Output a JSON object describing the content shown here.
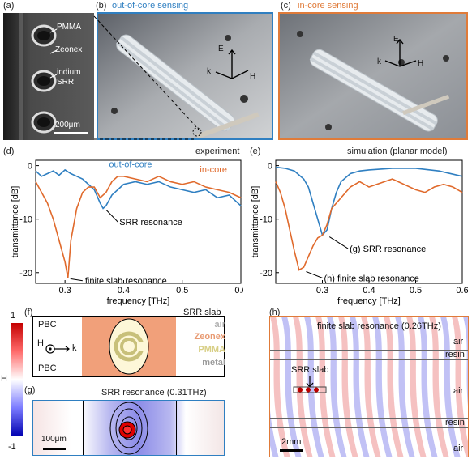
{
  "panels": {
    "a": {
      "label": "(a)",
      "annotations": [
        "PMMA",
        "Zeonex",
        "indium",
        "SRR"
      ],
      "scalebar": "200μm"
    },
    "b": {
      "label": "(b)",
      "title": "out-of-core sensing",
      "color": "#2f7fc1",
      "axes": {
        "e": "E",
        "k": "k",
        "h": "H"
      }
    },
    "c": {
      "label": "(c)",
      "title": "in-core sensing",
      "color": "#e07b39",
      "axes": {
        "e": "E",
        "k": "k",
        "h": "H"
      }
    },
    "d": {
      "label": "(d)",
      "tag": "experiment"
    },
    "e": {
      "label": "(e)",
      "tag": "simulation (planar model)"
    },
    "f": {
      "label": "(f)",
      "pbc_top": "PBC",
      "pbc_bottom": "PBC",
      "h_label": "H",
      "k_label": "k",
      "legend_title": "SRR slab",
      "legend": [
        {
          "name": "air",
          "color": "#b0b0b0"
        },
        {
          "name": "Zeonex",
          "color": "#e89a72"
        },
        {
          "name": "PMMA",
          "color": "#e8e0a0"
        },
        {
          "name": "metal",
          "color": "#9a9a9a"
        }
      ]
    },
    "g": {
      "label": "(g)",
      "title": "SRR resonance (0.31THz)",
      "scalebar": "100μm"
    },
    "h": {
      "label": "(h)",
      "title": "finite slab resonance (0.26THz)",
      "layers": [
        "air",
        "resin",
        "air",
        "resin",
        "air"
      ],
      "slab_label": "SRR slab",
      "scalebar": "2mm"
    },
    "colorbar": {
      "label": "H",
      "max": "1",
      "min": "-1"
    }
  },
  "chart_data": [
    {
      "type": "line",
      "panel": "d",
      "xlabel": "frequency [THz]",
      "ylabel": "transmittance [dB]",
      "xlim": [
        0.25,
        0.6
      ],
      "ylim": [
        -22,
        1
      ],
      "xticks": [
        0.3,
        0.4,
        0.5,
        0.6
      ],
      "yticks": [
        0,
        -10,
        -20
      ],
      "series": [
        {
          "name": "out-of-core",
          "color": "#2f7fc1",
          "x": [
            0.25,
            0.26,
            0.27,
            0.28,
            0.29,
            0.3,
            0.31,
            0.32,
            0.33,
            0.34,
            0.35,
            0.36,
            0.365,
            0.37,
            0.38,
            0.39,
            0.4,
            0.42,
            0.44,
            0.46,
            0.48,
            0.5,
            0.52,
            0.54,
            0.56,
            0.58,
            0.6
          ],
          "y": [
            -1,
            -2,
            -1.5,
            -1,
            -1.8,
            -0.8,
            -1.5,
            -2,
            -2.5,
            -3.5,
            -4.5,
            -7,
            -8,
            -7.5,
            -5.5,
            -4.5,
            -3.5,
            -3,
            -3.5,
            -3,
            -4,
            -4.5,
            -5,
            -4.5,
            -6,
            -5.5,
            -7.5
          ]
        },
        {
          "name": "in-core",
          "color": "#e06a2c",
          "x": [
            0.25,
            0.26,
            0.27,
            0.28,
            0.29,
            0.3,
            0.305,
            0.31,
            0.32,
            0.33,
            0.34,
            0.35,
            0.36,
            0.37,
            0.38,
            0.39,
            0.4,
            0.42,
            0.44,
            0.46,
            0.48,
            0.5,
            0.52,
            0.54,
            0.56,
            0.58,
            0.6
          ],
          "y": [
            -3,
            -5,
            -7,
            -10,
            -14,
            -18,
            -21,
            -14,
            -8,
            -5,
            -4,
            -4,
            -6,
            -5,
            -3,
            -2,
            -2,
            -2.5,
            -3,
            -2,
            -3,
            -3.5,
            -3,
            -4,
            -4.5,
            -5,
            -6
          ]
        }
      ],
      "annotations": [
        {
          "text": "SRR resonance",
          "x": 0.365,
          "y": -8
        },
        {
          "text": "finite slab resonance",
          "x": 0.305,
          "y": -21
        }
      ]
    },
    {
      "type": "line",
      "panel": "e",
      "xlabel": "frequency [THz]",
      "ylabel": "transmittance [dB]",
      "xlim": [
        0.2,
        0.6
      ],
      "ylim": [
        -22,
        1
      ],
      "xticks": [
        0.3,
        0.4,
        0.5,
        0.6
      ],
      "yticks": [
        0,
        -10,
        -20
      ],
      "series": [
        {
          "name": "out-of-core",
          "color": "#2f7fc1",
          "x": [
            0.2,
            0.22,
            0.24,
            0.26,
            0.27,
            0.28,
            0.29,
            0.3,
            0.31,
            0.32,
            0.33,
            0.34,
            0.36,
            0.38,
            0.4,
            0.45,
            0.5,
            0.55,
            0.6
          ],
          "y": [
            -0.3,
            -0.5,
            -1,
            -2.5,
            -4,
            -7,
            -10,
            -13,
            -12,
            -8,
            -5,
            -3,
            -1.5,
            -1,
            -0.8,
            -0.5,
            -0.5,
            -1,
            -2
          ]
        },
        {
          "name": "in-core",
          "color": "#e06a2c",
          "x": [
            0.2,
            0.21,
            0.22,
            0.23,
            0.24,
            0.25,
            0.26,
            0.27,
            0.28,
            0.29,
            0.3,
            0.31,
            0.32,
            0.33,
            0.34,
            0.35,
            0.36,
            0.38,
            0.4,
            0.45,
            0.5,
            0.52,
            0.54,
            0.56,
            0.58,
            0.6
          ],
          "y": [
            -3,
            -5,
            -8,
            -12,
            -16,
            -19.5,
            -19,
            -17,
            -15,
            -13.5,
            -13,
            -11,
            -8,
            -7,
            -6,
            -5,
            -4,
            -3,
            -4,
            -2.5,
            -4.5,
            -5,
            -4,
            -3.5,
            -4,
            -5
          ]
        }
      ],
      "annotations": [
        {
          "text": "(g) SRR resonance",
          "x": 0.31,
          "y": -13
        },
        {
          "text": "(h) finite slab resonance",
          "x": 0.26,
          "y": -19.5
        }
      ]
    }
  ]
}
